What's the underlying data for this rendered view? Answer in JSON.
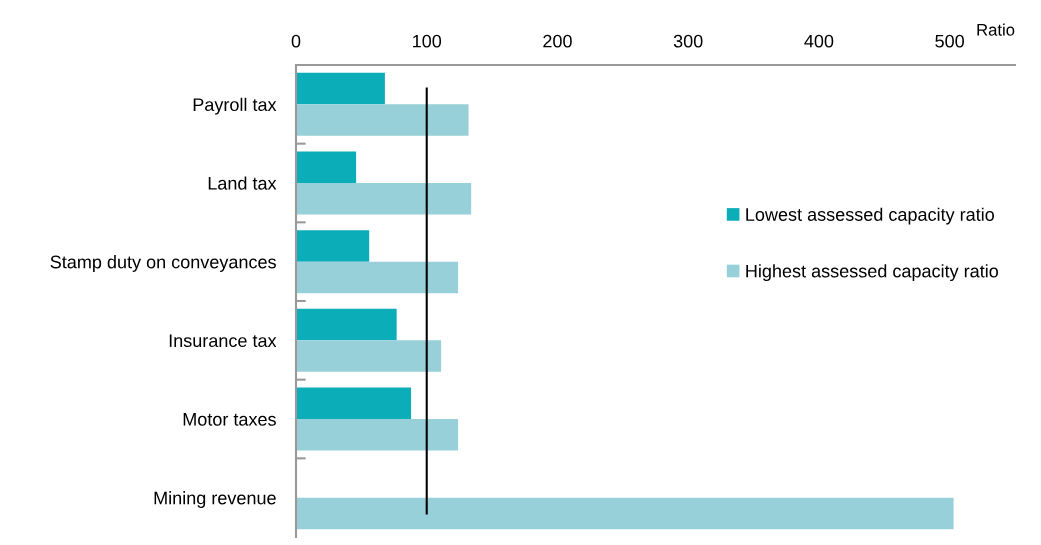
{
  "chart_data": {
    "type": "bar",
    "orientation": "horizontal",
    "xlabel": "Ratio",
    "categories": [
      "Payroll tax",
      "Land tax",
      "Stamp duty on conveyances",
      "Insurance tax",
      "Motor taxes",
      "Mining revenue"
    ],
    "series": [
      {
        "name": "Lowest assessed capacity ratio",
        "color": "#0badb9",
        "values": [
          68,
          46,
          56,
          77,
          88,
          null
        ]
      },
      {
        "name": "Highest assessed capacity ratio",
        "color": "#98d0d9",
        "values": [
          132,
          134,
          124,
          111,
          124,
          503
        ]
      }
    ],
    "xlim": [
      0,
      550
    ],
    "xticks": [
      0,
      100,
      200,
      300,
      400,
      500
    ],
    "ref_lines": [
      {
        "axis": "x",
        "value": 100,
        "color": "#000000"
      }
    ],
    "grid": false,
    "legend": "right"
  }
}
